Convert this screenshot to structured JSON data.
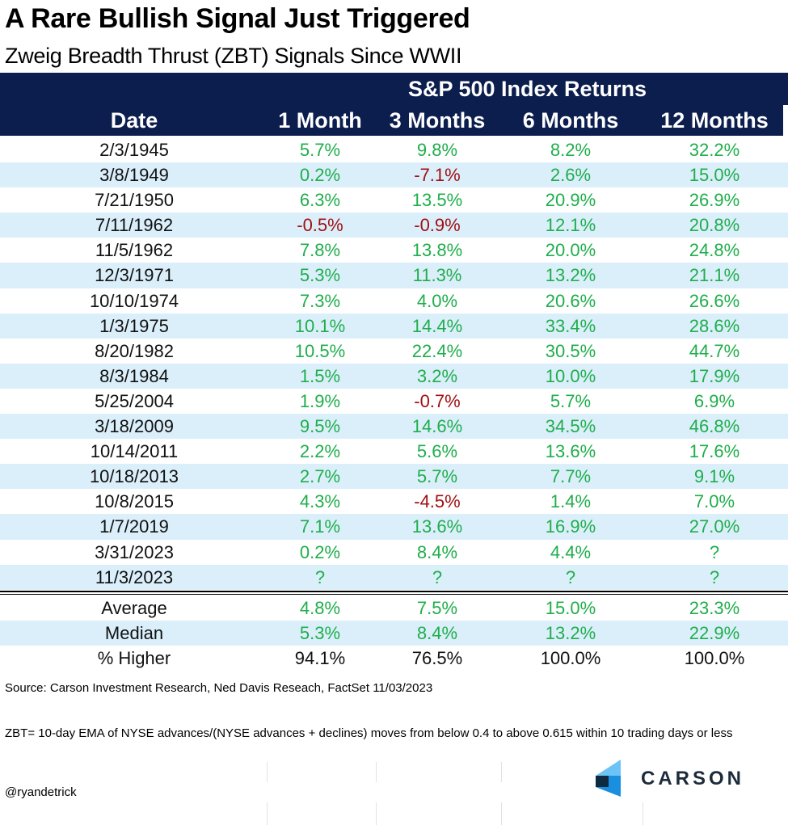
{
  "title": "A Rare Bullish Signal Just Triggered",
  "subtitle": "Zweig Breadth Thrust (ZBT) Signals Since WWII",
  "header": {
    "group_label": "S&P 500 Index Returns",
    "columns": [
      "Date",
      "1 Month",
      "3 Months",
      "6 Months",
      "12 Months"
    ]
  },
  "colors": {
    "header_bg": "#0c1e4e",
    "stripe": "#dbeffb",
    "positive": "#1fae4b",
    "negative": "#a10f12"
  },
  "chart_data": {
    "type": "table",
    "title": "A Rare Bullish Signal Just Triggered",
    "subtitle": "Zweig Breadth Thrust (ZBT) Signals Since WWII",
    "columns": [
      "Date",
      "1 Month",
      "3 Months",
      "6 Months",
      "12 Months"
    ],
    "rows": [
      [
        "2/3/1945",
        "5.7%",
        "9.8%",
        "8.2%",
        "32.2%"
      ],
      [
        "3/8/1949",
        "0.2%",
        "-7.1%",
        "2.6%",
        "15.0%"
      ],
      [
        "7/21/1950",
        "6.3%",
        "13.5%",
        "20.9%",
        "26.9%"
      ],
      [
        "7/11/1962",
        "-0.5%",
        "-0.9%",
        "12.1%",
        "20.8%"
      ],
      [
        "11/5/1962",
        "7.8%",
        "13.8%",
        "20.0%",
        "24.8%"
      ],
      [
        "12/3/1971",
        "5.3%",
        "11.3%",
        "13.2%",
        "21.1%"
      ],
      [
        "10/10/1974",
        "7.3%",
        "4.0%",
        "20.6%",
        "26.6%"
      ],
      [
        "1/3/1975",
        "10.1%",
        "14.4%",
        "33.4%",
        "28.6%"
      ],
      [
        "8/20/1982",
        "10.5%",
        "22.4%",
        "30.5%",
        "44.7%"
      ],
      [
        "8/3/1984",
        "1.5%",
        "3.2%",
        "10.0%",
        "17.9%"
      ],
      [
        "5/25/2004",
        "1.9%",
        "-0.7%",
        "5.7%",
        "6.9%"
      ],
      [
        "3/18/2009",
        "9.5%",
        "14.6%",
        "34.5%",
        "46.8%"
      ],
      [
        "10/14/2011",
        "2.2%",
        "5.6%",
        "13.6%",
        "17.6%"
      ],
      [
        "10/18/2013",
        "2.7%",
        "5.7%",
        "7.7%",
        "9.1%"
      ],
      [
        "10/8/2015",
        "4.3%",
        "-4.5%",
        "1.4%",
        "7.0%"
      ],
      [
        "1/7/2019",
        "7.1%",
        "13.6%",
        "16.9%",
        "27.0%"
      ],
      [
        "3/31/2023",
        "0.2%",
        "8.4%",
        "4.4%",
        "?"
      ],
      [
        "11/3/2023",
        "?",
        "?",
        "?",
        "?"
      ]
    ],
    "summary": [
      [
        "Average",
        "4.8%",
        "7.5%",
        "15.0%",
        "23.3%"
      ],
      [
        "Median",
        "5.3%",
        "8.4%",
        "13.2%",
        "22.9%"
      ],
      [
        "% Higher",
        "94.1%",
        "76.5%",
        "100.0%",
        "100.0%"
      ]
    ]
  },
  "footer": {
    "source": "Source: Carson Investment Research, Ned Davis Reseach, FactSet 11/03/2023",
    "note": "ZBT= 10-day EMA of NYSE advances/(NYSE advances + declines) moves from below 0.4 to above 0.615 within 10 trading days or less",
    "handle": "@ryandetrick",
    "logo_text": "CARSON"
  }
}
